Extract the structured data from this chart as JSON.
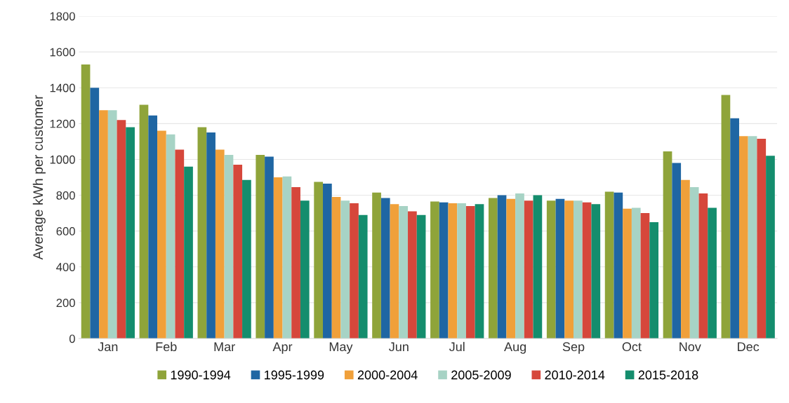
{
  "chart_data": {
    "type": "bar",
    "ylabel": "Average kWh per customer",
    "categories": [
      "Jan",
      "Feb",
      "Mar",
      "Apr",
      "May",
      "Jun",
      "Jul",
      "Aug",
      "Sep",
      "Oct",
      "Nov",
      "Dec"
    ],
    "series": [
      {
        "name": "1990-1994",
        "color": "#8fa43a",
        "values": [
          1530,
          1305,
          1180,
          1025,
          875,
          815,
          765,
          785,
          770,
          820,
          1045,
          1360
        ]
      },
      {
        "name": "1995-1999",
        "color": "#1f66a3",
        "values": [
          1400,
          1245,
          1150,
          1015,
          865,
          785,
          760,
          800,
          780,
          815,
          980,
          1230
        ]
      },
      {
        "name": "2000-2004",
        "color": "#f0a03a",
        "values": [
          1275,
          1160,
          1055,
          900,
          790,
          750,
          755,
          780,
          770,
          725,
          885,
          1130
        ]
      },
      {
        "name": "2005-2009",
        "color": "#a7d3c5",
        "values": [
          1275,
          1140,
          1025,
          905,
          770,
          740,
          755,
          810,
          770,
          730,
          845,
          1130
        ]
      },
      {
        "name": "2010-2014",
        "color": "#d6473b",
        "values": [
          1220,
          1055,
          970,
          845,
          755,
          710,
          740,
          770,
          760,
          700,
          810,
          1115
        ]
      },
      {
        "name": "2015-2018",
        "color": "#148d6d",
        "values": [
          1180,
          960,
          885,
          770,
          690,
          690,
          750,
          800,
          750,
          650,
          730,
          1020
        ]
      }
    ],
    "ylim": [
      0,
      1800
    ],
    "yticks": [
      0,
      200,
      400,
      600,
      800,
      1000,
      1200,
      1400,
      1600,
      1800
    ],
    "grid": "y",
    "legend": "bottom"
  }
}
